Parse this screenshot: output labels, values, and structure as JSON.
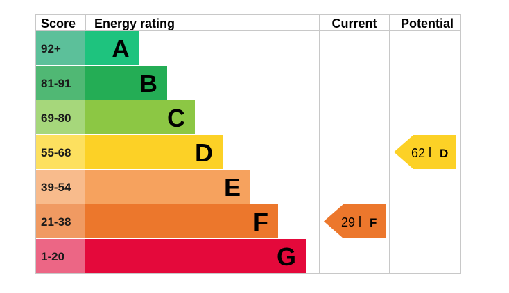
{
  "chart_data": {
    "type": "bar",
    "headers": {
      "score": "Score",
      "energy_rating": "Energy rating",
      "current": "Current",
      "potential": "Potential"
    },
    "bands": [
      {
        "letter": "A",
        "range": "92+",
        "color": "#1ec37e",
        "score_bg": "#5cc09a"
      },
      {
        "letter": "B",
        "range": "81-91",
        "color": "#24ad55",
        "score_bg": "#50b874"
      },
      {
        "letter": "C",
        "range": "69-80",
        "color": "#8cc744",
        "score_bg": "#a6d77b"
      },
      {
        "letter": "D",
        "range": "55-68",
        "color": "#fcd126",
        "score_bg": "#fde05f"
      },
      {
        "letter": "E",
        "range": "39-54",
        "color": "#f6a25e",
        "score_bg": "#f8bb8c"
      },
      {
        "letter": "F",
        "range": "21-38",
        "color": "#ec772c",
        "score_bg": "#f09a62"
      },
      {
        "letter": "G",
        "range": "1-20",
        "color": "#e4093b",
        "score_bg": "#ec6685"
      }
    ],
    "current": {
      "value": 29,
      "letter": "F",
      "color": "#ec772c"
    },
    "potential": {
      "value": 62,
      "letter": "D",
      "color": "#fcd126"
    }
  }
}
